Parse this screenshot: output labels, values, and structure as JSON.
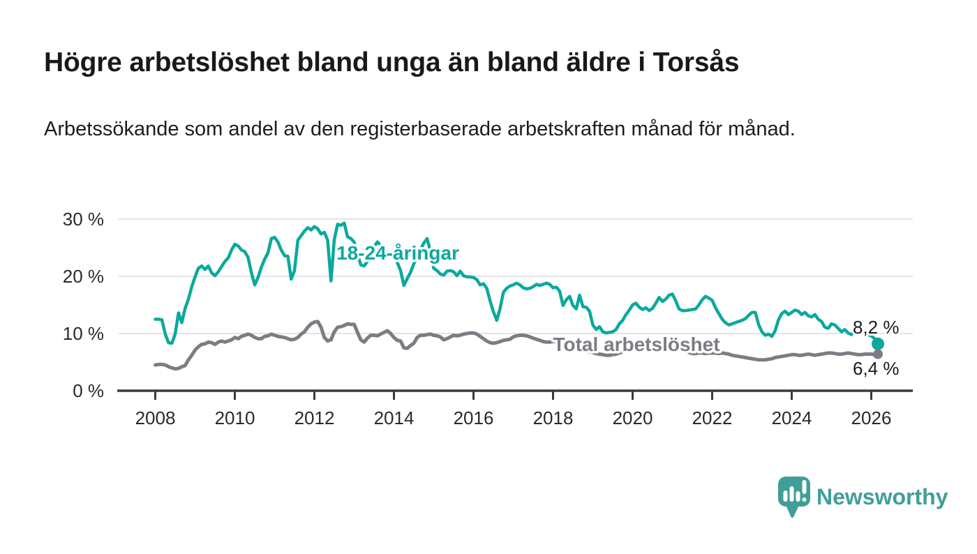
{
  "header": {
    "title": "Högre arbetslöshet bland unga än bland äldre i Torsås",
    "subtitle": "Arbetssökande som andel av den registerbaserade arbetskraften månad för månad."
  },
  "chart_data": {
    "type": "line",
    "unit": "percent",
    "frequency": "monthly",
    "x_start": "2008-01",
    "x_end": "2026-03",
    "x_axis": {
      "ticks": [
        2008,
        2010,
        2012,
        2014,
        2016,
        2018,
        2020,
        2022,
        2024,
        2026
      ]
    },
    "y_axis": {
      "ticks": [
        {
          "value": 0,
          "label": "0 %"
        },
        {
          "value": 10,
          "label": "10 %"
        },
        {
          "value": 20,
          "label": "20 %"
        },
        {
          "value": 30,
          "label": "30 %"
        }
      ]
    },
    "ylim": [
      0,
      31
    ],
    "grid": "horizontal",
    "colors": {
      "youth": "#0ca89e",
      "total": "#7c7c84",
      "gridline": "#dcdcdc",
      "axis": "#3a3a3a"
    },
    "series": [
      {
        "name": "18-24-åringar",
        "color": "#0ca89e",
        "line_width": 4.5,
        "end_dot_radius": 9,
        "end_label": "8,2 %",
        "end_value": 8.2,
        "values": [
          12.5,
          12.5,
          12.4,
          9.9,
          8.4,
          8.3,
          9.9,
          13.6,
          11.9,
          14.4,
          16.0,
          18.2,
          19.9,
          21.4,
          21.8,
          21.2,
          21.8,
          20.6,
          20.1,
          20.8,
          21.7,
          22.6,
          23.2,
          24.6,
          25.6,
          25.3,
          24.6,
          24.3,
          23.3,
          20.6,
          18.5,
          19.8,
          21.6,
          23.0,
          24.1,
          26.6,
          26.8,
          26.0,
          24.6,
          23.6,
          23.5,
          19.5,
          21.0,
          26.3,
          27.1,
          27.9,
          28.5,
          28.1,
          28.7,
          28.3,
          27.4,
          27.7,
          26.3,
          19.2,
          26.4,
          29.1,
          28.9,
          29.3,
          26.9,
          26.6,
          26.0,
          23.8,
          22.0,
          21.8,
          22.6,
          24.1,
          25.2,
          26.0,
          25.4,
          24.7,
          24.2,
          23.8,
          23.4,
          22.4,
          21.0,
          18.4,
          19.6,
          20.7,
          22.2,
          23.4,
          24.6,
          25.8,
          26.6,
          24.4,
          21.4,
          21.0,
          20.4,
          20.2,
          20.9,
          21.0,
          20.8,
          20.1,
          20.9,
          20.1,
          19.9,
          19.9,
          19.8,
          19.4,
          18.5,
          18.7,
          17.9,
          15.7,
          13.8,
          12.3,
          14.3,
          17.2,
          17.9,
          18.3,
          18.5,
          18.8,
          18.5,
          18.0,
          17.8,
          17.9,
          18.2,
          18.6,
          18.4,
          18.6,
          18.8,
          18.6,
          18.0,
          18.1,
          17.4,
          14.9,
          15.9,
          16.5,
          14.9,
          14.3,
          16.7,
          14.7,
          14.6,
          13.9,
          11.5,
          10.7,
          11.2,
          10.3,
          10.1,
          10.2,
          10.3,
          10.7,
          11.7,
          12.3,
          13.3,
          14.1,
          15.0,
          15.3,
          14.6,
          14.2,
          14.5,
          14.0,
          14.4,
          15.3,
          16.3,
          15.6,
          16.0,
          16.7,
          16.9,
          15.7,
          14.3,
          14.0,
          14.0,
          14.1,
          14.2,
          14.3,
          15.0,
          15.9,
          16.5,
          16.2,
          15.8,
          14.5,
          13.5,
          12.5,
          11.9,
          11.5,
          11.7,
          11.9,
          12.1,
          12.3,
          12.6,
          13.2,
          13.7,
          13.7,
          11.6,
          10.3,
          9.7,
          9.9,
          9.5,
          10.5,
          12.4,
          13.5,
          13.9,
          13.3,
          13.7,
          14.1,
          13.9,
          13.3,
          13.7,
          13.1,
          12.9,
          13.3,
          12.5,
          12.1,
          11.1,
          10.9,
          11.7,
          11.5,
          10.9,
          10.3,
          10.7,
          10.1,
          9.8,
          10.4,
          10.0,
          10.1,
          10.3,
          9.8,
          9.6,
          9.1,
          8.2
        ]
      },
      {
        "name": "Total arbetslöshet",
        "color": "#7c7c84",
        "line_width": 5,
        "end_dot_radius": 7,
        "end_label": "6,4 %",
        "end_value": 6.4,
        "values": [
          4.5,
          4.6,
          4.6,
          4.5,
          4.2,
          4.0,
          3.8,
          3.9,
          4.2,
          4.4,
          5.4,
          6.2,
          7.1,
          7.7,
          8.1,
          8.2,
          8.5,
          8.4,
          8.1,
          8.5,
          8.7,
          8.5,
          8.7,
          8.9,
          9.3,
          9.1,
          9.5,
          9.7,
          9.9,
          9.7,
          9.3,
          9.1,
          9.1,
          9.5,
          9.6,
          9.9,
          9.7,
          9.5,
          9.4,
          9.3,
          9.1,
          8.9,
          9.0,
          9.3,
          9.9,
          10.3,
          11.1,
          11.7,
          12.0,
          12.1,
          11.1,
          9.3,
          8.7,
          8.9,
          10.3,
          11.1,
          11.2,
          11.4,
          11.7,
          11.6,
          11.6,
          10.2,
          8.9,
          8.5,
          9.2,
          9.7,
          9.7,
          9.6,
          9.9,
          10.2,
          10.5,
          10.0,
          9.3,
          8.8,
          8.7,
          7.5,
          7.4,
          7.9,
          8.3,
          9.3,
          9.7,
          9.7,
          9.8,
          9.9,
          9.7,
          9.6,
          9.4,
          8.9,
          9.1,
          9.4,
          9.7,
          9.6,
          9.7,
          9.9,
          10.0,
          10.1,
          10.1,
          9.9,
          9.5,
          9.1,
          8.7,
          8.4,
          8.3,
          8.4,
          8.6,
          8.8,
          8.9,
          9.0,
          9.4,
          9.6,
          9.7,
          9.7,
          9.6,
          9.4,
          9.2,
          9.0,
          8.8,
          8.6,
          8.5,
          8.5,
          8.6,
          8.7,
          8.5,
          8.2,
          7.9,
          7.7,
          7.5,
          7.3,
          7.2,
          7.0,
          6.9,
          6.8,
          6.7,
          6.5,
          6.4,
          6.3,
          6.2,
          6.2,
          6.3,
          6.4,
          6.6,
          6.8,
          7.0,
          7.2,
          7.5,
          7.8,
          8.1,
          8.4,
          8.5,
          8.4,
          8.3,
          8.2,
          8.0,
          7.9,
          7.8,
          7.7,
          7.6,
          7.4,
          7.2,
          7.0,
          6.9,
          6.7,
          6.5,
          6.5,
          6.6,
          6.6,
          6.5,
          6.6,
          6.6,
          6.6,
          6.5,
          6.6,
          6.5,
          6.4,
          6.2,
          6.1,
          6.0,
          5.9,
          5.8,
          5.7,
          5.6,
          5.5,
          5.4,
          5.4,
          5.4,
          5.5,
          5.6,
          5.8,
          5.9,
          6.0,
          6.1,
          6.2,
          6.3,
          6.3,
          6.2,
          6.2,
          6.3,
          6.4,
          6.3,
          6.2,
          6.3,
          6.4,
          6.5,
          6.6,
          6.6,
          6.5,
          6.4,
          6.4,
          6.5,
          6.6,
          6.5,
          6.4,
          6.3,
          6.3,
          6.4,
          6.4,
          6.4,
          6.3,
          6.4
        ]
      }
    ]
  },
  "footer": {
    "brand": "Newsworthy",
    "brand_color": "#3f9f98"
  }
}
